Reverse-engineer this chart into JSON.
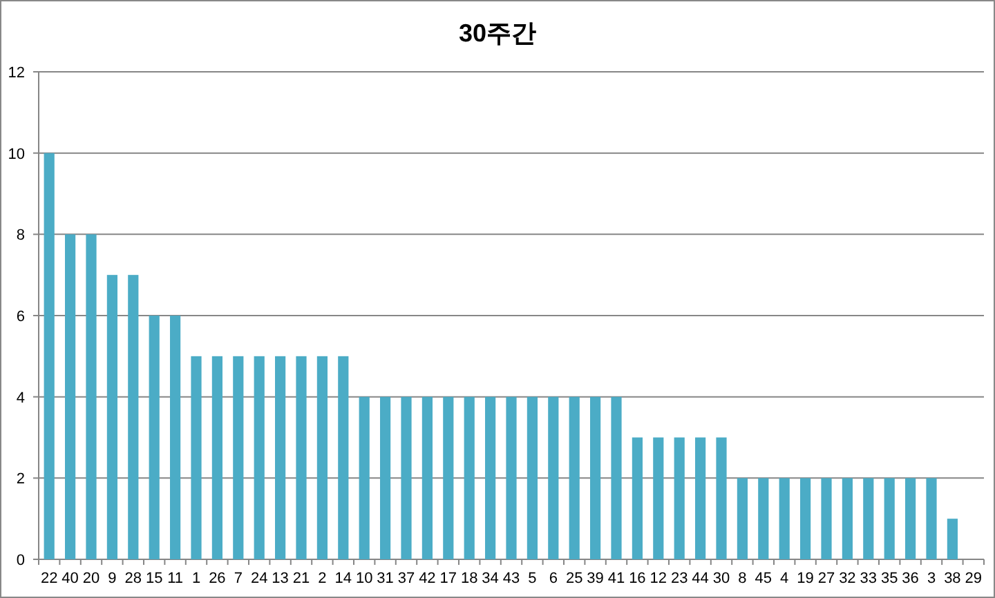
{
  "chart_data": {
    "type": "bar",
    "title": "30주간",
    "categories": [
      "22",
      "40",
      "20",
      "9",
      "28",
      "15",
      "11",
      "1",
      "26",
      "7",
      "24",
      "13",
      "21",
      "2",
      "14",
      "10",
      "31",
      "37",
      "42",
      "17",
      "18",
      "34",
      "43",
      "5",
      "6",
      "25",
      "39",
      "41",
      "16",
      "12",
      "23",
      "44",
      "30",
      "8",
      "45",
      "4",
      "19",
      "27",
      "32",
      "33",
      "35",
      "36",
      "3",
      "38",
      "29"
    ],
    "values": [
      10,
      8,
      8,
      7,
      7,
      6,
      6,
      5,
      5,
      5,
      5,
      5,
      5,
      5,
      5,
      4,
      4,
      4,
      4,
      4,
      4,
      4,
      4,
      4,
      4,
      4,
      4,
      4,
      3,
      3,
      3,
      3,
      3,
      2,
      2,
      2,
      2,
      2,
      2,
      2,
      2,
      2,
      2,
      1,
      0
    ],
    "color": "#4bacc6",
    "ylim": [
      0,
      12
    ],
    "yticks": [
      0,
      2,
      4,
      6,
      8,
      10,
      12
    ],
    "grid": "y"
  }
}
